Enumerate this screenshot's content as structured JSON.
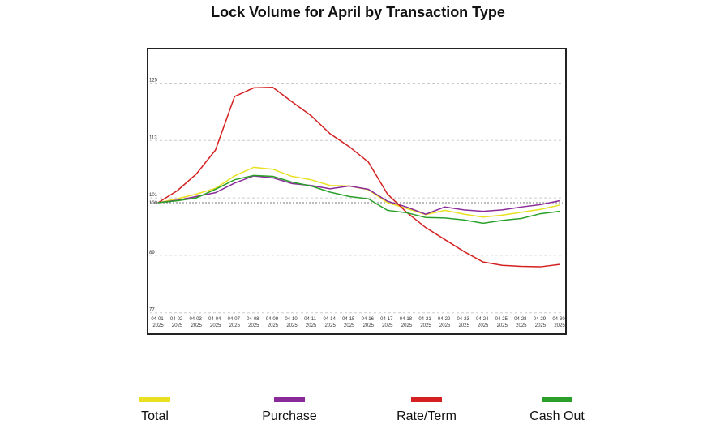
{
  "chart_data": {
    "type": "line",
    "title": "Lock Volume for April by Transaction Type",
    "xlabel": "",
    "ylabel": "",
    "ylim": [
      77,
      133
    ],
    "yticks": [
      77,
      89,
      100,
      101,
      113,
      125
    ],
    "baseline": 100,
    "categories": [
      "04-01-2025",
      "04-02-2025",
      "04-03-2025",
      "04-04-2025",
      "04-07-2025",
      "04-08-2025",
      "04-09-2025",
      "04-10-2025",
      "04-11-2025",
      "04-14-2025",
      "04-15-2025",
      "04-16-2025",
      "04-17-2025",
      "04-18-2025",
      "04-21-2025",
      "04-22-2025",
      "04-23-2025",
      "04-24-2025",
      "04-25-2025",
      "04-28-2025",
      "04-29-2025",
      "04-30-2025"
    ],
    "legend_position": "bottom",
    "series": [
      {
        "name": "Total",
        "color": "#e8e020",
        "values": [
          100,
          100.8,
          101.8,
          103,
          105.6,
          107.4,
          107,
          105.5,
          104.8,
          103.6,
          103.5,
          102.7,
          100,
          98.8,
          97.5,
          98.4,
          97.6,
          97,
          97.4,
          98,
          98.6,
          99.5
        ]
      },
      {
        "name": "Purchase",
        "color": "#8a2a9a",
        "values": [
          100,
          100.5,
          101.3,
          102.1,
          104.1,
          105.6,
          105.2,
          104,
          103.6,
          102.9,
          103.5,
          102.8,
          100.3,
          99.1,
          97.6,
          99.1,
          98.5,
          98.2,
          98.5,
          99.1,
          99.6,
          100.4
        ]
      },
      {
        "name": "Rate/Term",
        "color": "#d42020",
        "values": [
          100,
          102.5,
          106,
          111,
          122.2,
          124,
          124.1,
          121.1,
          118.2,
          114.4,
          111.7,
          108.5,
          101.8,
          98,
          94.8,
          92.3,
          89.8,
          87.6,
          86.9,
          86.7,
          86.6,
          87.1
        ]
      },
      {
        "name": "Cash Out",
        "color": "#2aa02a",
        "values": [
          100,
          100.4,
          101,
          102.8,
          104.8,
          105.7,
          105.5,
          104.3,
          103.5,
          102.2,
          101.3,
          100.8,
          98.4,
          97.9,
          96.9,
          96.8,
          96.4,
          95.7,
          96.3,
          96.7,
          97.7,
          98.2
        ]
      }
    ]
  }
}
